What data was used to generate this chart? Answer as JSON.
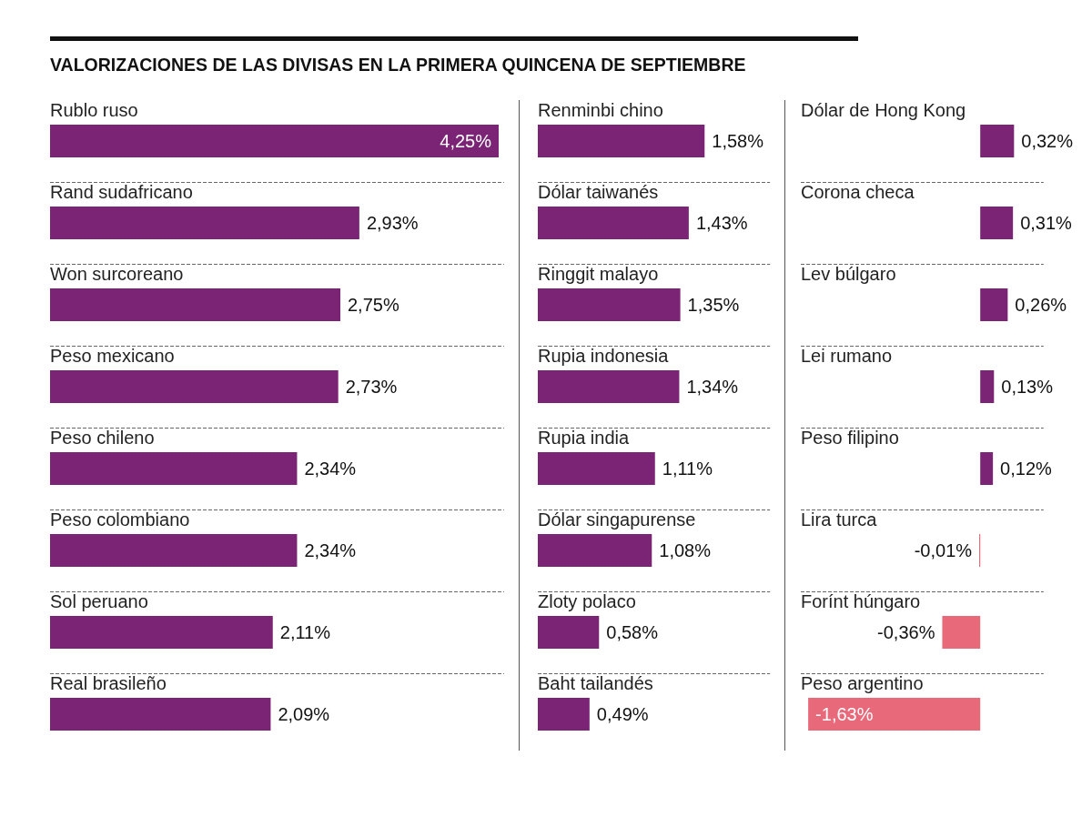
{
  "chart_data": [
    {
      "type": "bar",
      "orientation": "horizontal",
      "title": "VALORIZACIONES DE LAS DIVISAS EN LA PRIMERA QUINCENA DE SEPTIEMBRE",
      "categories": [
        "Rublo ruso",
        "Rand sudafricano",
        "Won surcoreano",
        "Peso mexicano",
        "Peso chileno",
        "Peso colombiano",
        "Sol peruano",
        "Real brasileño"
      ],
      "values": [
        4.25,
        2.93,
        2.75,
        2.73,
        2.34,
        2.34,
        2.11,
        2.09
      ],
      "value_labels": [
        "4,25%",
        "2,93%",
        "2,75%",
        "2,73%",
        "2,34%",
        "2,34%",
        "2,11%",
        "2,09%"
      ],
      "colors": [
        "#7b2374",
        "#7b2374",
        "#7b2374",
        "#7b2374",
        "#7b2374",
        "#7b2374",
        "#7b2374",
        "#7b2374"
      ],
      "xlim": [
        0,
        4.3
      ],
      "grid": "y"
    },
    {
      "type": "bar",
      "orientation": "horizontal",
      "categories": [
        "Renminbi chino",
        "Dólar taiwanés",
        "Ringgit malayo",
        "Rupia indonesia",
        "Rupia india",
        "Dólar singapurense",
        "Zloty polaco",
        "Baht tailandés"
      ],
      "values": [
        1.58,
        1.43,
        1.35,
        1.34,
        1.11,
        1.08,
        0.58,
        0.49
      ],
      "value_labels": [
        "1,58%",
        "1,43%",
        "1,35%",
        "1,34%",
        "1,11%",
        "1,08%",
        "0,58%",
        "0,49%"
      ],
      "colors": [
        "#7b2374",
        "#7b2374",
        "#7b2374",
        "#7b2374",
        "#7b2374",
        "#7b2374",
        "#7b2374",
        "#7b2374"
      ],
      "xlim": [
        0,
        2.2
      ],
      "grid": "y"
    },
    {
      "type": "bar",
      "orientation": "horizontal",
      "categories": [
        "Dólar de Hong Kong",
        "Corona checa",
        "Lev búlgaro",
        "Lei rumano",
        "Peso filipino",
        "Lira turca",
        "Forínt húngaro",
        "Peso argentino"
      ],
      "values": [
        0.32,
        0.31,
        0.26,
        0.13,
        0.12,
        -0.01,
        -0.36,
        -1.63
      ],
      "value_labels": [
        "0,32%",
        "0,31%",
        "0,26%",
        "0,13%",
        "0,12%",
        "-0,01%",
        "-0,36%",
        "-1,63%"
      ],
      "colors": [
        "#7b2374",
        "#7b2374",
        "#7b2374",
        "#7b2374",
        "#7b2374",
        "#e8697a",
        "#e8697a",
        "#e8697a"
      ],
      "xlim": [
        -1.7,
        0.6
      ],
      "grid": "y"
    }
  ]
}
